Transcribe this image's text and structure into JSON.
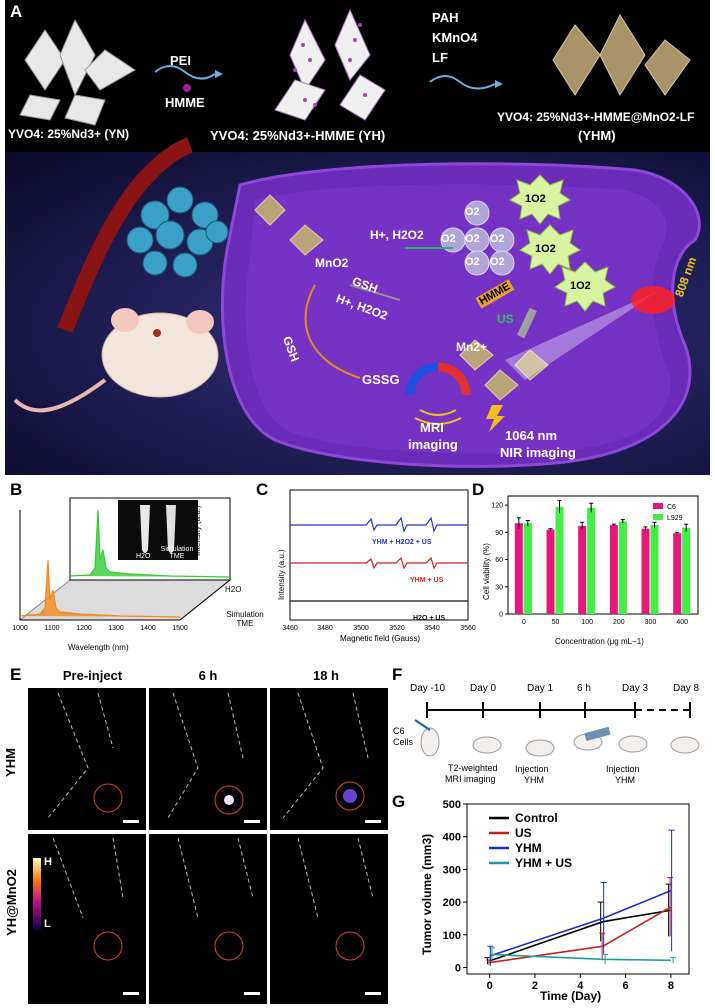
{
  "panelA": {
    "letter": "A",
    "reagents1": {
      "pei": "PEI",
      "hmme": "HMME"
    },
    "reagents2": {
      "pah": "PAH",
      "kmno4": "KMnO4",
      "lf": "LF"
    },
    "labels": {
      "yn": "YVO4: 25%Nd3+ (YN)",
      "yh": "YVO4: 25%Nd3+-HMME (YH)",
      "yhm_line1": "YVO4: 25%Nd3+-HMME@MnO2-LF",
      "yhm_line2": "(YHM)"
    },
    "cell": {
      "h_h2o2": "H+, H2O2",
      "mno2": "MnO2",
      "gsh_arrow": "GSH",
      "h_h2o2_arrow": "H+, H2O2",
      "gsh_left": "GSH",
      "gssg": "GSSG",
      "o2": "O2",
      "singlet_o2": "1O2",
      "hmme": "HMME",
      "us": "US",
      "mn2": "Mn2+",
      "laser": "808 nm",
      "mri_line1": "MRI",
      "mri_line2": "imaging",
      "nir_line1": "1064 nm",
      "nir_line2": "NIR imaging"
    }
  },
  "panelB": {
    "letter": "B",
    "ylabel": "Intensity (a.u.)",
    "xlabel": "Wavelength (nm)",
    "xticks": [
      "1000",
      "1100",
      "1200",
      "1300",
      "1400",
      "1500"
    ],
    "series_labels": [
      "H2O",
      "Simulation TME"
    ],
    "inset_labels": [
      "H2O",
      "Simulation TME"
    ],
    "colors": {
      "h2o": "#33cc33",
      "tme": "#f08a1e"
    }
  },
  "panelC": {
    "letter": "C",
    "ylabel": "Intensity (a.u.)",
    "xlabel": "Magnetic field (Gauss)",
    "xticks": [
      "3460",
      "3480",
      "3500",
      "3520",
      "3540",
      "3560"
    ],
    "traces": [
      {
        "label": "YHM + H2O2 + US",
        "color": "#2233cc"
      },
      {
        "label": "YHM + US",
        "color": "#d42020"
      },
      {
        "label": "H2O + US",
        "color": "#111111"
      }
    ]
  },
  "panelD": {
    "letter": "D",
    "ylabel": "Cell viability (%)",
    "xlabel": "Concentration (μg mL−1)",
    "yticks": [
      "0",
      "30",
      "60",
      "90",
      "120"
    ],
    "colors": {
      "c6": "#e6177a",
      "l929": "#44ee44"
    },
    "chart_data": {
      "type": "bar",
      "categories": [
        "0",
        "50",
        "100",
        "200",
        "300",
        "400"
      ],
      "series": [
        {
          "name": "C6",
          "values": [
            100,
            93,
            97,
            98,
            94,
            89
          ],
          "errors": [
            6,
            1,
            4,
            1,
            2,
            1
          ]
        },
        {
          "name": "L929",
          "values": [
            100,
            118,
            117,
            102,
            98,
            95
          ],
          "errors": [
            3,
            7,
            5,
            2,
            3,
            4
          ]
        }
      ],
      "ylim": [
        0,
        130
      ]
    }
  },
  "panelE": {
    "letter": "E",
    "columns": [
      "Pre-inject",
      "6 h",
      "18 h"
    ],
    "rows": [
      "YHM",
      "YH@MnO2"
    ],
    "colorbar": {
      "high": "H",
      "low": "L"
    }
  },
  "panelF": {
    "letter": "F",
    "days": [
      "Day -10",
      "Day 0",
      "Day 1",
      "6 h",
      "Day 3",
      "Day 8"
    ],
    "c6_line1": "C6",
    "c6_line2": "Cells",
    "t2_line1": "T2-weighted",
    "t2_line2": "MRI imaging",
    "inj1_line1": "Injection",
    "inj1_line2": "YHM",
    "inj2_line1": "Injection",
    "inj2_line2": "YHM"
  },
  "panelG": {
    "letter": "G",
    "ylabel": "Tumor volume (mm3)",
    "xlabel": "Time (Day)",
    "xticks": [
      "0",
      "2",
      "4",
      "6",
      "8"
    ],
    "yticks": [
      "0",
      "100",
      "200",
      "300",
      "400",
      "500"
    ],
    "chart_data": {
      "type": "line",
      "x": [
        0,
        5,
        8
      ],
      "series": [
        {
          "name": "Control",
          "values": [
            20,
            140,
            175
          ],
          "errors": [
            10,
            60,
            80
          ],
          "color": "#000000"
        },
        {
          "name": "US",
          "values": [
            15,
            65,
            185
          ],
          "errors": [
            8,
            40,
            90
          ],
          "color": "#cc1f1f"
        },
        {
          "name": "YHM",
          "values": [
            35,
            150,
            235
          ],
          "errors": [
            30,
            110,
            185
          ],
          "color": "#1f2acc"
        },
        {
          "name": "YHM + US",
          "values": [
            40,
            25,
            22
          ],
          "errors": [
            20,
            15,
            8
          ],
          "color": "#1f9a9a"
        }
      ],
      "xlim": [
        -1,
        8.8
      ],
      "ylim": [
        -20,
        500
      ]
    }
  }
}
